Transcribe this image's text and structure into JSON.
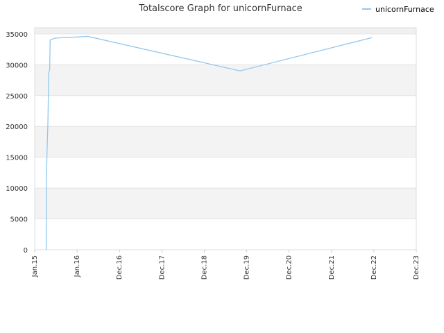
{
  "chart_data": {
    "type": "line",
    "title": "Totalscore Graph for unicornFurnace",
    "xlabel": "",
    "ylabel": "",
    "x_ticks": [
      "Jan.15",
      "Jan.16",
      "Dec.16",
      "Dec.17",
      "Dec.18",
      "Dec.19",
      "Dec.20",
      "Dec.21",
      "Dec.22",
      "Dec.23"
    ],
    "y_ticks": [
      "0",
      "5000",
      "10000",
      "15000",
      "20000",
      "25000",
      "30000",
      "35000"
    ],
    "ylim": [
      0,
      36000
    ],
    "grid": true,
    "legend_position": "top-right",
    "series": [
      {
        "name": "unicornFurnace",
        "color": "#90c8f0",
        "points": [
          {
            "x": "2015-04-10",
            "y": 0
          },
          {
            "x": "2015-04-12",
            "y": 11300
          },
          {
            "x": "2015-04-18",
            "y": 16400
          },
          {
            "x": "2015-04-25",
            "y": 20800
          },
          {
            "x": "2015-05-02",
            "y": 28600
          },
          {
            "x": "2015-05-10",
            "y": 29300
          },
          {
            "x": "2015-05-14",
            "y": 34000
          },
          {
            "x": "2015-06-20",
            "y": 34300
          },
          {
            "x": "2015-09-01",
            "y": 34400
          },
          {
            "x": "2016-01-01",
            "y": 34500
          },
          {
            "x": "2016-04-01",
            "y": 34600
          },
          {
            "x": "2019-11-05",
            "y": 29000
          },
          {
            "x": "2022-12-15",
            "y": 34400
          }
        ]
      }
    ]
  }
}
